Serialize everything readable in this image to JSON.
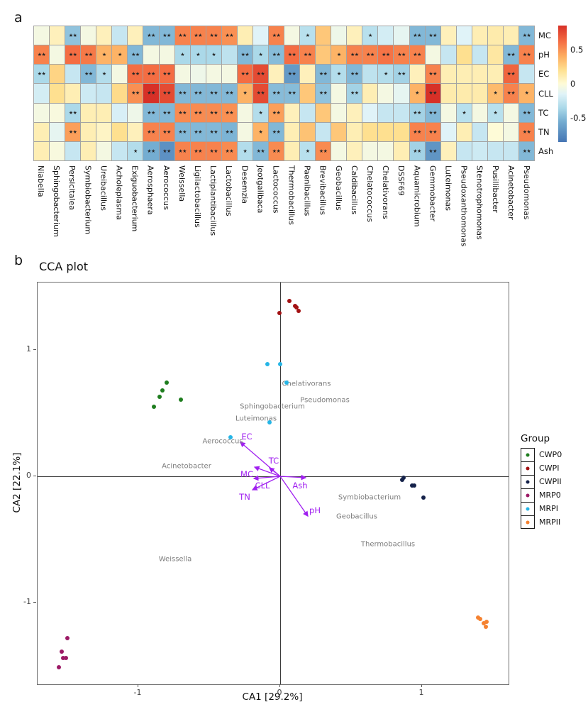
{
  "labels": {
    "panel_a": "a",
    "panel_b": "b"
  },
  "chart_data": [
    {
      "type": "heatmap",
      "rows": [
        "MC",
        "pH",
        "EC",
        "CLL",
        "TC",
        "TN",
        "Ash"
      ],
      "columns": [
        "Niabella",
        "Sphingobacterium",
        "Persicitalea",
        "Symbiobacterium",
        "Ureibacillus",
        "Acholeplasma",
        "Exiguobacterium",
        "Aerosphaera",
        "Aerococcus",
        "Weissella",
        "Ligilactobacillus",
        "Lactiplantibacillus",
        "Lactobacillus",
        "Desemzia",
        "Jeotgalibaca",
        "Lactococcus",
        "Thermobacillus",
        "Paenibacillus",
        "Brevibacillus",
        "Geobacillus",
        "Caldibacillus",
        "Chelatococcus",
        "Chelativorans",
        "DSSF69",
        "Aquamicrobium",
        "Gemmobacter",
        "Luteimonas",
        "Pseudoxanthomonas",
        "Stenotrophomonas",
        "Pusillibacter",
        "Acinetobacter",
        "Pseudomonas"
      ],
      "values": [
        [
          -0.05,
          0.08,
          -0.45,
          -0.05,
          0.08,
          -0.25,
          0.08,
          -0.5,
          -0.5,
          0.55,
          0.55,
          0.55,
          0.5,
          0.1,
          -0.15,
          0.55,
          -0.05,
          -0.3,
          0.3,
          -0.08,
          0.08,
          -0.3,
          -0.2,
          -0.12,
          -0.5,
          -0.5,
          0.08,
          -0.15,
          0.1,
          0.12,
          0.1,
          -0.5
        ],
        [
          0.55,
          -0.05,
          0.62,
          0.58,
          0.38,
          0.38,
          -0.5,
          -0.05,
          -0.05,
          -0.35,
          -0.35,
          -0.35,
          -0.28,
          -0.5,
          -0.35,
          -0.48,
          0.62,
          0.55,
          0.3,
          0.38,
          0.55,
          0.55,
          0.6,
          0.55,
          0.55,
          -0.05,
          -0.25,
          0.2,
          -0.25,
          0.15,
          -0.5,
          0.55
        ],
        [
          -0.35,
          0.25,
          -0.25,
          -0.5,
          -0.32,
          -0.05,
          0.62,
          0.62,
          0.62,
          -0.05,
          -0.08,
          -0.05,
          -0.05,
          0.62,
          0.75,
          0.08,
          -0.65,
          0.08,
          -0.5,
          -0.32,
          -0.5,
          -0.28,
          -0.32,
          -0.38,
          0.08,
          0.55,
          0.1,
          0.1,
          0.1,
          0.1,
          0.65,
          -0.25
        ],
        [
          -0.2,
          0.2,
          0.1,
          -0.22,
          -0.25,
          0.22,
          0.5,
          0.85,
          0.75,
          -0.5,
          -0.5,
          -0.5,
          -0.5,
          0.38,
          0.75,
          -0.48,
          -0.48,
          0.3,
          -0.45,
          -0.05,
          -0.38,
          0.1,
          -0.05,
          -0.12,
          0.38,
          0.85,
          0.12,
          0.12,
          0.12,
          0.35,
          0.55,
          0.38
        ],
        [
          -0.05,
          -0.03,
          -0.35,
          0.1,
          0.1,
          -0.18,
          -0.08,
          -0.5,
          -0.5,
          0.52,
          0.52,
          0.52,
          0.5,
          -0.05,
          -0.32,
          0.45,
          0.08,
          -0.25,
          0.3,
          -0.05,
          0.08,
          -0.15,
          -0.25,
          -0.25,
          -0.38,
          -0.5,
          -0.05,
          -0.3,
          -0.05,
          -0.3,
          -0.05,
          -0.5
        ],
        [
          0.1,
          -0.12,
          0.45,
          0.1,
          0.05,
          0.2,
          0.08,
          0.55,
          0.55,
          -0.5,
          -0.5,
          -0.5,
          -0.52,
          -0.05,
          0.38,
          -0.5,
          0.1,
          0.32,
          -0.25,
          0.3,
          0.1,
          0.2,
          0.2,
          0.2,
          0.55,
          0.55,
          -0.15,
          0.1,
          -0.25,
          0.0,
          -0.05,
          0.55
        ],
        [
          0.1,
          -0.03,
          -0.25,
          0.1,
          -0.05,
          -0.25,
          -0.32,
          -0.55,
          -0.7,
          0.55,
          0.55,
          0.55,
          0.52,
          -0.32,
          -0.5,
          0.52,
          0.1,
          -0.3,
          0.52,
          -0.05,
          0.08,
          -0.05,
          -0.05,
          0.1,
          -0.38,
          -0.68,
          0.08,
          -0.25,
          -0.22,
          -0.25,
          -0.25,
          -0.5
        ]
      ],
      "significance": [
        [
          "",
          "",
          "**",
          "",
          "",
          "",
          "",
          "**",
          "**",
          "**",
          "**",
          "**",
          "**",
          "",
          "",
          "**",
          "",
          "*",
          "",
          "",
          "",
          "*",
          "",
          "",
          "**",
          "**",
          "",
          "",
          "",
          "",
          "",
          "**"
        ],
        [
          "**",
          "",
          "**",
          "**",
          "*",
          "*",
          "**",
          "",
          "",
          "*",
          "*",
          "*",
          "",
          "**",
          "*",
          "**",
          "**",
          "**",
          "",
          "*",
          "**",
          "**",
          "**",
          "**",
          "**",
          "",
          "",
          "",
          "",
          "",
          "**",
          "**"
        ],
        [
          "**",
          "",
          "",
          "**",
          "*",
          "",
          "**",
          "**",
          "**",
          "",
          "",
          "",
          "",
          "**",
          "**",
          "",
          "**",
          "",
          "**",
          "*",
          "**",
          "",
          "*",
          "**",
          "",
          "**",
          "",
          "",
          "",
          "",
          "**",
          ""
        ],
        [
          "",
          "",
          "",
          "",
          "",
          "",
          "**",
          "**",
          "**",
          "**",
          "**",
          "**",
          "**",
          "*",
          "**",
          "**",
          "**",
          "",
          "**",
          "",
          "**",
          "",
          "",
          "",
          "*",
          "**",
          "",
          "",
          "",
          "*",
          "**",
          "*"
        ],
        [
          "",
          "",
          "**",
          "",
          "",
          "",
          "",
          "**",
          "**",
          "**",
          "**",
          "**",
          "**",
          "",
          "*",
          "**",
          "",
          "",
          "",
          "",
          "",
          "",
          "",
          "",
          "**",
          "**",
          "",
          "*",
          "",
          "*",
          "",
          "**"
        ],
        [
          "",
          "",
          "**",
          "",
          "",
          "",
          "",
          "**",
          "**",
          "**",
          "**",
          "**",
          "**",
          "",
          "*",
          "**",
          "",
          "",
          "",
          "",
          "",
          "",
          "",
          "",
          "**",
          "**",
          "",
          "",
          "",
          "",
          "",
          "**"
        ],
        [
          "",
          "",
          "",
          "",
          "",
          "",
          "*",
          "**",
          "**",
          "**",
          "**",
          "**",
          "**",
          "*",
          "**",
          "**",
          "",
          "*",
          "**",
          "",
          "",
          "",
          "",
          "",
          "**",
          "**",
          "",
          "",
          "",
          "",
          "",
          "**"
        ]
      ],
      "colorbar": {
        "min": -0.85,
        "max": 0.85,
        "tick_values": [
          0.5,
          0,
          -0.5
        ],
        "tick_labels": [
          "0.5",
          "0",
          "-0.5"
        ],
        "stops": [
          [
            -0.85,
            "#4575b4"
          ],
          [
            -0.55,
            "#74add1"
          ],
          [
            -0.35,
            "#abd9e9"
          ],
          [
            -0.15,
            "#e0f3f8"
          ],
          [
            0.0,
            "#fefbd7"
          ],
          [
            0.2,
            "#fee090"
          ],
          [
            0.4,
            "#fdae61"
          ],
          [
            0.62,
            "#f46d43"
          ],
          [
            0.85,
            "#d73027"
          ]
        ]
      }
    },
    {
      "type": "scatter",
      "title": "CCA plot",
      "xlabel": "CA1  [29.2%]",
      "ylabel": "CA2  [22.1%]",
      "xlim": [
        -1.71,
        1.61
      ],
      "ylim": [
        -1.646,
        1.534
      ],
      "x_ticks": [
        {
          "value": -1,
          "label": "-1"
        },
        {
          "value": 0,
          "label": "0"
        },
        {
          "value": 1,
          "label": "1"
        }
      ],
      "y_ticks": [
        {
          "value": 1,
          "label": "1"
        },
        {
          "value": 0,
          "label": "0"
        },
        {
          "value": -1,
          "label": "-1"
        }
      ],
      "legend_title": "Group",
      "series": [
        {
          "name": "CWP0",
          "color": "#1e7d1e",
          "points": [
            [
              -0.8,
              0.74
            ],
            [
              -0.83,
              0.68
            ],
            [
              -0.85,
              0.63
            ],
            [
              -0.7,
              0.61
            ],
            [
              -0.89,
              0.55
            ]
          ]
        },
        {
          "name": "CWPI",
          "color": "#a31113",
          "points": [
            [
              0.065,
              1.39
            ],
            [
              0.105,
              1.35
            ],
            [
              0.115,
              1.34
            ],
            [
              0.13,
              1.31
            ],
            [
              -0.005,
              1.29
            ]
          ]
        },
        {
          "name": "CWPII",
          "color": "#15224a",
          "points": [
            [
              0.87,
              -0.01
            ],
            [
              0.86,
              -0.03
            ],
            [
              0.93,
              -0.07
            ],
            [
              0.945,
              -0.075
            ],
            [
              1.01,
              -0.17
            ]
          ]
        },
        {
          "name": "MRP0",
          "color": "#9c1a66",
          "points": [
            [
              -1.5,
              -1.28
            ],
            [
              -1.54,
              -1.39
            ],
            [
              -1.53,
              -1.44
            ],
            [
              -1.51,
              -1.44
            ],
            [
              -1.56,
              -1.51
            ]
          ]
        },
        {
          "name": "MRPI",
          "color": "#25b5e6",
          "points": [
            [
              -0.09,
              0.89
            ],
            [
              0.0,
              0.89
            ],
            [
              0.045,
              0.74
            ],
            [
              -0.075,
              0.43
            ],
            [
              -0.35,
              0.31
            ]
          ]
        },
        {
          "name": "MRPII",
          "color": "#f58231",
          "points": [
            [
              1.395,
              -1.12
            ],
            [
              1.41,
              -1.13
            ],
            [
              1.435,
              -1.16
            ],
            [
              1.455,
              -1.15
            ],
            [
              1.45,
              -1.19
            ]
          ]
        }
      ],
      "arrows": {
        "color": "#a020f0",
        "items": [
          {
            "label": "EC",
            "x": -0.28,
            "y": 0.27,
            "label_x": -0.235,
            "label_y": 0.315
          },
          {
            "label": "TC",
            "x": -0.075,
            "y": 0.067,
            "label_x": -0.045,
            "label_y": 0.125
          },
          {
            "label": "MC",
            "x": -0.18,
            "y": 0.073,
            "label_x": -0.235,
            "label_y": 0.02
          },
          {
            "label": "CLL",
            "x": -0.185,
            "y": -0.017,
            "label_x": -0.125,
            "label_y": -0.075
          },
          {
            "label": "TN",
            "x": -0.195,
            "y": -0.107,
            "label_x": -0.25,
            "label_y": -0.165
          },
          {
            "label": "Ash",
            "x": 0.18,
            "y": -0.011,
            "label_x": 0.14,
            "label_y": -0.07
          },
          {
            "label": "pH",
            "x": 0.195,
            "y": -0.315,
            "label_x": 0.245,
            "label_y": -0.27
          }
        ]
      },
      "species_labels": {
        "color": "#7d7d7d",
        "items": [
          {
            "text": "Chelativorans",
            "x": 0.185,
            "y": 0.73
          },
          {
            "text": "Pseudomonas",
            "x": 0.315,
            "y": 0.6
          },
          {
            "text": "Sphingobacterium",
            "x": -0.055,
            "y": 0.55
          },
          {
            "text": "Luteimonas",
            "x": -0.17,
            "y": 0.455
          },
          {
            "text": "Aerococcus",
            "x": -0.405,
            "y": 0.275
          },
          {
            "text": "Acinetobacter",
            "x": -0.66,
            "y": 0.08
          },
          {
            "text": "Symbiobacterium",
            "x": 0.63,
            "y": -0.17
          },
          {
            "text": "Geobacillus",
            "x": 0.54,
            "y": -0.32
          },
          {
            "text": "Thermobacillus",
            "x": 0.76,
            "y": -0.54
          },
          {
            "text": "Weissella",
            "x": -0.74,
            "y": -0.655
          }
        ]
      }
    }
  ]
}
